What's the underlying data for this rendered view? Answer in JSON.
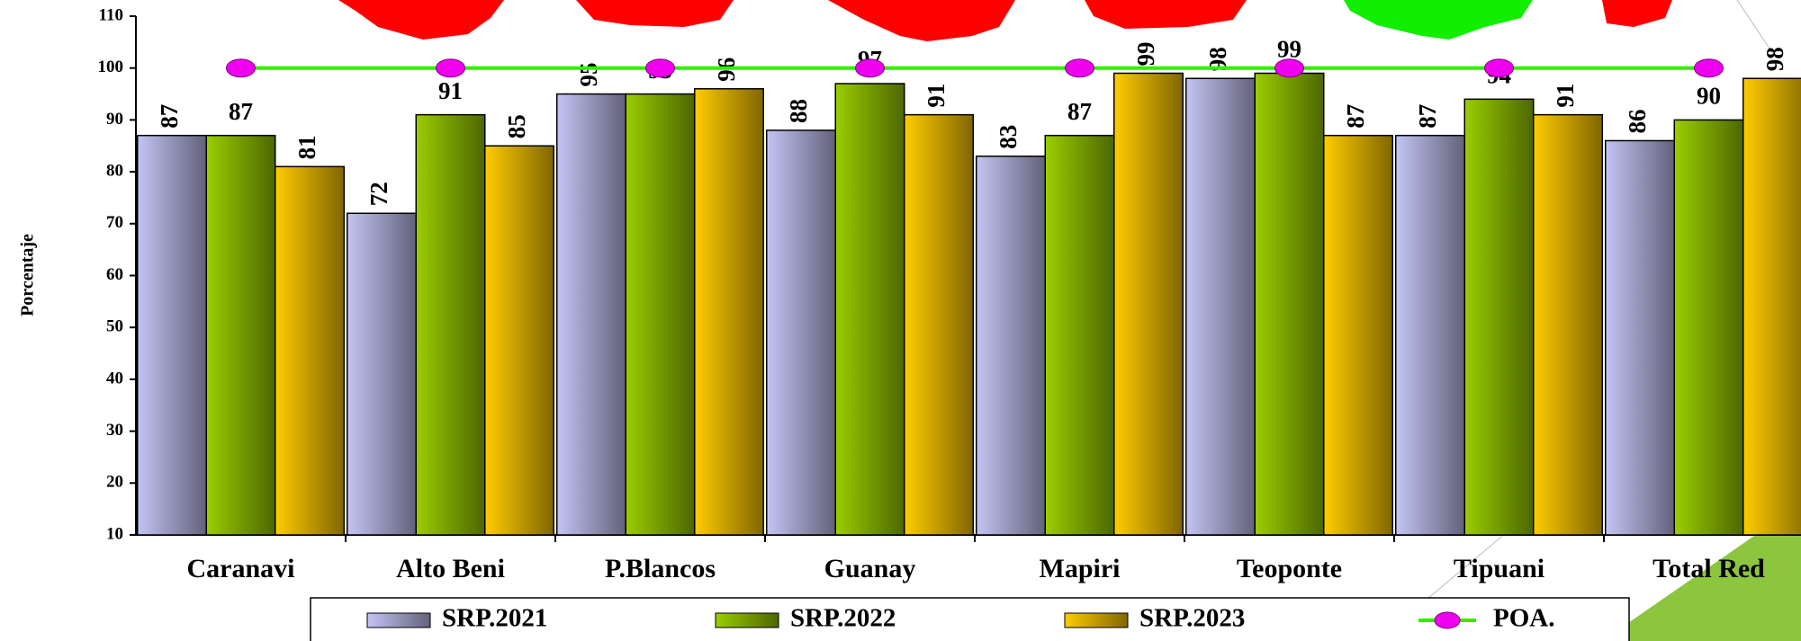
{
  "chart_data": {
    "type": "bar",
    "y_label": "Porcentaje",
    "categories": [
      "Caranavi",
      "Alto Beni",
      "P.Blancos",
      "Guanay",
      "Mapiri",
      "Teoponte",
      "Tipuani",
      "Total Red"
    ],
    "series": [
      {
        "name": "SRP.2021",
        "color": "#c4c4f4",
        "values": [
          87,
          72,
          95,
          88,
          83,
          98,
          87,
          86
        ]
      },
      {
        "name": "SRP.2022",
        "color": "#9acd00",
        "values": [
          87,
          91,
          95,
          97,
          87,
          99,
          94,
          90
        ]
      },
      {
        "name": "SRP.2023",
        "color": "#ffcc00",
        "values": [
          81,
          85,
          96,
          91,
          99,
          87,
          91,
          98
        ]
      },
      {
        "name": "POA.",
        "type": "line",
        "color": "#33ee00",
        "marker_color": "#ee00ee",
        "values": [
          100,
          100,
          100,
          100,
          100,
          100,
          100,
          100
        ]
      }
    ],
    "ylim": [
      10,
      110
    ],
    "yticks": [
      10,
      20,
      30,
      40,
      50,
      60,
      70,
      80,
      90,
      100,
      110
    ],
    "grid": false,
    "legend": "bottom"
  }
}
